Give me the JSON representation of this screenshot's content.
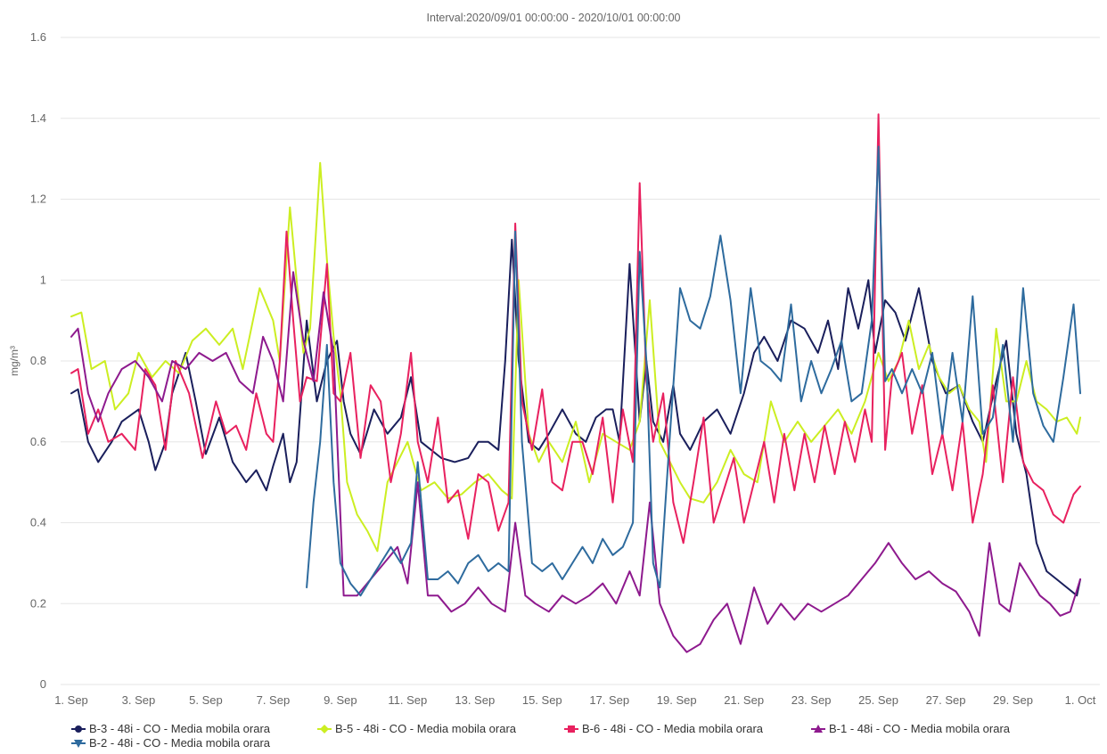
{
  "chart_data": {
    "type": "line",
    "title": "Interval:2020/09/01 00:00:00 - 2020/10/01 00:00:00",
    "ylabel": "mg/m³",
    "xlabel": "",
    "ylim": [
      0,
      1.6
    ],
    "yticks": [
      "0",
      "0.2",
      "0.4",
      "0.6",
      "0.8",
      "1",
      "1.2",
      "1.4",
      "1.6"
    ],
    "xlim": [
      1,
      31
    ],
    "xtick_labels": [
      "1. Sep",
      "3. Sep",
      "5. Sep",
      "7. Sep",
      "9. Sep",
      "11. Sep",
      "13. Sep",
      "15. Sep",
      "17. Sep",
      "19. Sep",
      "21. Sep",
      "23. Sep",
      "25. Sep",
      "27. Sep",
      "29. Sep",
      "1. Oct"
    ],
    "x_unit": "day of September 2020 (31 = 1. Oct)",
    "grid": "horizontal",
    "legend_position": "bottom-left",
    "series": [
      {
        "name": "B-3 - 48i - CO - Media mobila orara",
        "color": "#1a1f5c",
        "marker": "circle",
        "x": [
          1.0,
          1.2,
          1.5,
          1.8,
          2.2,
          2.5,
          3.0,
          3.3,
          3.5,
          3.8,
          4.0,
          4.4,
          4.7,
          5.0,
          5.4,
          5.8,
          6.2,
          6.5,
          6.8,
          7.0,
          7.3,
          7.5,
          7.7,
          8.0,
          8.3,
          8.6,
          8.9,
          9.1,
          9.3,
          9.6,
          10.0,
          10.4,
          10.8,
          11.1,
          11.4,
          11.7,
          12.0,
          12.4,
          12.8,
          13.1,
          13.4,
          13.7,
          13.9,
          14.1,
          14.3,
          14.6,
          14.9,
          15.2,
          15.6,
          16.0,
          16.3,
          16.6,
          16.9,
          17.1,
          17.3,
          17.6,
          17.9,
          18.1,
          18.3,
          18.6,
          18.9,
          19.1,
          19.4,
          19.8,
          20.2,
          20.6,
          21.0,
          21.3,
          21.6,
          22.0,
          22.4,
          22.8,
          23.2,
          23.5,
          23.8,
          24.1,
          24.4,
          24.7,
          24.9,
          25.2,
          25.5,
          25.8,
          26.2,
          26.6,
          27.0,
          27.4,
          27.8,
          28.1,
          28.5,
          28.8,
          29.1,
          29.4,
          29.7,
          30.0,
          30.3,
          30.6,
          30.9,
          31.0
        ],
        "y": [
          0.72,
          0.73,
          0.6,
          0.55,
          0.6,
          0.65,
          0.68,
          0.6,
          0.53,
          0.6,
          0.72,
          0.82,
          0.7,
          0.57,
          0.66,
          0.55,
          0.5,
          0.53,
          0.48,
          0.54,
          0.62,
          0.5,
          0.55,
          0.9,
          0.7,
          0.8,
          0.85,
          0.7,
          0.62,
          0.57,
          0.68,
          0.62,
          0.66,
          0.76,
          0.6,
          0.58,
          0.56,
          0.55,
          0.56,
          0.6,
          0.6,
          0.58,
          0.8,
          1.1,
          0.8,
          0.6,
          0.58,
          0.62,
          0.68,
          0.62,
          0.6,
          0.66,
          0.68,
          0.68,
          0.6,
          1.04,
          0.65,
          0.8,
          0.65,
          0.6,
          0.74,
          0.62,
          0.58,
          0.65,
          0.68,
          0.62,
          0.72,
          0.82,
          0.86,
          0.8,
          0.9,
          0.88,
          0.82,
          0.9,
          0.78,
          0.98,
          0.88,
          1.0,
          0.82,
          0.95,
          0.92,
          0.85,
          0.98,
          0.8,
          0.72,
          0.74,
          0.65,
          0.6,
          0.75,
          0.85,
          0.62,
          0.52,
          0.35,
          0.28,
          0.26,
          0.24,
          0.22,
          0.26
        ]
      },
      {
        "name": "B-5 - 48i - CO - Media mobila orara",
        "color": "#ccee22",
        "marker": "diamond",
        "x": [
          1.0,
          1.3,
          1.6,
          2.0,
          2.3,
          2.7,
          3.0,
          3.4,
          3.8,
          4.2,
          4.6,
          5.0,
          5.4,
          5.8,
          6.1,
          6.3,
          6.6,
          7.0,
          7.2,
          7.5,
          7.7,
          7.9,
          8.1,
          8.4,
          8.6,
          8.8,
          9.0,
          9.2,
          9.5,
          9.8,
          10.1,
          10.4,
          10.7,
          11.0,
          11.4,
          11.8,
          12.2,
          12.6,
          13.0,
          13.4,
          13.8,
          14.1,
          14.3,
          14.6,
          14.9,
          15.2,
          15.6,
          16.0,
          16.4,
          16.8,
          17.2,
          17.6,
          17.9,
          18.2,
          18.5,
          18.8,
          19.1,
          19.4,
          19.8,
          20.2,
          20.6,
          21.0,
          21.4,
          21.8,
          22.2,
          22.6,
          23.0,
          23.4,
          23.8,
          24.2,
          24.6,
          25.0,
          25.3,
          25.6,
          25.9,
          26.2,
          26.5,
          26.8,
          27.1,
          27.4,
          27.7,
          28.0,
          28.2,
          28.5,
          28.8,
          29.1,
          29.4,
          29.7,
          30.0,
          30.3,
          30.6,
          30.9,
          31.0
        ],
        "y": [
          0.91,
          0.92,
          0.78,
          0.8,
          0.68,
          0.72,
          0.82,
          0.76,
          0.8,
          0.77,
          0.85,
          0.88,
          0.84,
          0.88,
          0.78,
          0.86,
          0.98,
          0.9,
          0.8,
          1.18,
          1.0,
          0.82,
          0.88,
          1.29,
          1.05,
          0.86,
          0.72,
          0.5,
          0.42,
          0.38,
          0.33,
          0.5,
          0.55,
          0.6,
          0.48,
          0.5,
          0.46,
          0.47,
          0.5,
          0.52,
          0.48,
          0.46,
          1.0,
          0.62,
          0.55,
          0.6,
          0.55,
          0.65,
          0.5,
          0.62,
          0.6,
          0.58,
          0.65,
          0.95,
          0.6,
          0.55,
          0.5,
          0.46,
          0.45,
          0.5,
          0.58,
          0.52,
          0.5,
          0.7,
          0.6,
          0.65,
          0.6,
          0.64,
          0.68,
          0.62,
          0.7,
          0.82,
          0.75,
          0.8,
          0.9,
          0.78,
          0.84,
          0.76,
          0.72,
          0.74,
          0.68,
          0.65,
          0.55,
          0.88,
          0.7,
          0.7,
          0.8,
          0.7,
          0.68,
          0.65,
          0.66,
          0.62,
          0.66
        ]
      },
      {
        "name": "B-6 - 48i - CO - Media mobila orara",
        "color": "#e8215f",
        "marker": "square",
        "x": [
          1.0,
          1.2,
          1.5,
          1.8,
          2.1,
          2.5,
          2.9,
          3.2,
          3.5,
          3.8,
          4.1,
          4.5,
          4.9,
          5.3,
          5.6,
          5.9,
          6.2,
          6.5,
          6.8,
          7.0,
          7.2,
          7.4,
          7.6,
          7.8,
          8.0,
          8.3,
          8.6,
          8.8,
          9.0,
          9.3,
          9.6,
          9.9,
          10.2,
          10.5,
          10.8,
          11.1,
          11.3,
          11.6,
          11.9,
          12.2,
          12.5,
          12.8,
          13.1,
          13.4,
          13.7,
          14.0,
          14.2,
          14.4,
          14.7,
          15.0,
          15.3,
          15.6,
          15.9,
          16.2,
          16.5,
          16.8,
          17.1,
          17.4,
          17.7,
          17.9,
          18.1,
          18.3,
          18.6,
          18.9,
          19.2,
          19.5,
          19.8,
          20.1,
          20.4,
          20.7,
          21.0,
          21.3,
          21.6,
          21.9,
          22.2,
          22.5,
          22.8,
          23.1,
          23.4,
          23.7,
          24.0,
          24.3,
          24.6,
          24.8,
          25.0,
          25.2,
          25.4,
          25.7,
          26.0,
          26.3,
          26.6,
          26.9,
          27.2,
          27.5,
          27.8,
          28.1,
          28.4,
          28.7,
          29.0,
          29.3,
          29.6,
          29.9,
          30.2,
          30.5,
          30.8,
          31.0
        ],
        "y": [
          0.77,
          0.78,
          0.62,
          0.68,
          0.6,
          0.62,
          0.58,
          0.78,
          0.74,
          0.58,
          0.8,
          0.72,
          0.56,
          0.7,
          0.62,
          0.64,
          0.58,
          0.72,
          0.62,
          0.6,
          0.8,
          1.12,
          0.9,
          0.7,
          0.76,
          0.75,
          1.04,
          0.72,
          0.7,
          0.82,
          0.56,
          0.74,
          0.7,
          0.5,
          0.62,
          0.82,
          0.6,
          0.5,
          0.66,
          0.45,
          0.48,
          0.36,
          0.52,
          0.5,
          0.38,
          0.45,
          1.14,
          0.7,
          0.58,
          0.73,
          0.5,
          0.48,
          0.6,
          0.6,
          0.52,
          0.66,
          0.45,
          0.68,
          0.55,
          1.24,
          0.75,
          0.6,
          0.72,
          0.45,
          0.35,
          0.5,
          0.66,
          0.4,
          0.48,
          0.56,
          0.4,
          0.5,
          0.6,
          0.45,
          0.62,
          0.48,
          0.62,
          0.5,
          0.64,
          0.52,
          0.65,
          0.55,
          0.68,
          0.6,
          1.41,
          0.58,
          0.76,
          0.82,
          0.62,
          0.74,
          0.52,
          0.62,
          0.48,
          0.65,
          0.4,
          0.52,
          0.74,
          0.5,
          0.76,
          0.55,
          0.5,
          0.48,
          0.42,
          0.4,
          0.47,
          0.49
        ]
      },
      {
        "name": "B-1 - 48i - CO - Media mobila orara",
        "color": "#8e1a8e",
        "marker": "triangle",
        "x": [
          1.0,
          1.2,
          1.5,
          1.8,
          2.1,
          2.5,
          2.9,
          3.3,
          3.7,
          4.0,
          4.4,
          4.8,
          5.2,
          5.6,
          6.0,
          6.4,
          6.7,
          7.0,
          7.3,
          7.6,
          7.9,
          8.2,
          8.5,
          8.8,
          9.1,
          9.5,
          9.9,
          10.3,
          10.7,
          11.0,
          11.3,
          11.6,
          11.9,
          12.3,
          12.7,
          13.1,
          13.5,
          13.9,
          14.2,
          14.5,
          14.8,
          15.2,
          15.6,
          16.0,
          16.4,
          16.8,
          17.2,
          17.6,
          17.9,
          18.2,
          18.5,
          18.9,
          19.3,
          19.7,
          20.1,
          20.5,
          20.9,
          21.3,
          21.7,
          22.1,
          22.5,
          22.9,
          23.3,
          23.7,
          24.1,
          24.5,
          24.9,
          25.3,
          25.7,
          26.1,
          26.5,
          26.9,
          27.3,
          27.7,
          28.0,
          28.3,
          28.6,
          28.9,
          29.2,
          29.5,
          29.8,
          30.1,
          30.4,
          30.7,
          31.0
        ],
        "y": [
          0.86,
          0.88,
          0.72,
          0.65,
          0.72,
          0.78,
          0.8,
          0.76,
          0.7,
          0.8,
          0.78,
          0.82,
          0.8,
          0.82,
          0.75,
          0.72,
          0.86,
          0.8,
          0.7,
          1.02,
          0.85,
          0.75,
          0.97,
          0.82,
          0.22,
          0.22,
          0.26,
          0.3,
          0.34,
          0.25,
          0.5,
          0.22,
          0.22,
          0.18,
          0.2,
          0.24,
          0.2,
          0.18,
          0.4,
          0.22,
          0.2,
          0.18,
          0.22,
          0.2,
          0.22,
          0.25,
          0.2,
          0.28,
          0.22,
          0.45,
          0.2,
          0.12,
          0.08,
          0.1,
          0.16,
          0.2,
          0.1,
          0.24,
          0.15,
          0.2,
          0.16,
          0.2,
          0.18,
          0.2,
          0.22,
          0.26,
          0.3,
          0.35,
          0.3,
          0.26,
          0.28,
          0.25,
          0.23,
          0.18,
          0.12,
          0.35,
          0.2,
          0.18,
          0.3,
          0.26,
          0.22,
          0.2,
          0.17,
          0.18,
          0.26
        ]
      },
      {
        "name": "B-2 - 48i - CO - Media mobila orara",
        "color": "#2e6b9e",
        "marker": "triangle-down",
        "x": [
          8.0,
          8.2,
          8.4,
          8.6,
          8.8,
          9.0,
          9.3,
          9.6,
          9.9,
          10.2,
          10.5,
          10.8,
          11.1,
          11.3,
          11.6,
          11.9,
          12.2,
          12.5,
          12.8,
          13.1,
          13.4,
          13.7,
          14.0,
          14.2,
          14.4,
          14.7,
          15.0,
          15.3,
          15.6,
          15.9,
          16.2,
          16.5,
          16.8,
          17.1,
          17.4,
          17.7,
          17.9,
          18.1,
          18.3,
          18.5,
          18.8,
          19.1,
          19.4,
          19.7,
          20.0,
          20.3,
          20.6,
          20.9,
          21.2,
          21.5,
          21.8,
          22.1,
          22.4,
          22.7,
          23.0,
          23.3,
          23.6,
          23.9,
          24.2,
          24.5,
          24.8,
          25.0,
          25.2,
          25.4,
          25.7,
          26.0,
          26.3,
          26.6,
          26.9,
          27.2,
          27.5,
          27.8,
          28.1,
          28.4,
          28.7,
          29.0,
          29.3,
          29.6,
          29.9,
          30.2,
          30.5,
          30.8,
          31.0
        ],
        "y": [
          0.24,
          0.45,
          0.6,
          0.84,
          0.5,
          0.3,
          0.25,
          0.22,
          0.26,
          0.3,
          0.34,
          0.3,
          0.35,
          0.55,
          0.26,
          0.26,
          0.28,
          0.25,
          0.3,
          0.32,
          0.28,
          0.3,
          0.28,
          1.12,
          0.6,
          0.3,
          0.28,
          0.3,
          0.26,
          0.3,
          0.34,
          0.3,
          0.36,
          0.32,
          0.34,
          0.4,
          1.07,
          0.8,
          0.3,
          0.24,
          0.62,
          0.98,
          0.9,
          0.88,
          0.96,
          1.11,
          0.95,
          0.72,
          0.98,
          0.8,
          0.78,
          0.75,
          0.94,
          0.7,
          0.8,
          0.72,
          0.78,
          0.85,
          0.7,
          0.72,
          0.9,
          1.33,
          0.75,
          0.78,
          0.72,
          0.78,
          0.72,
          0.82,
          0.62,
          0.82,
          0.65,
          0.96,
          0.62,
          0.66,
          0.84,
          0.6,
          0.98,
          0.72,
          0.64,
          0.6,
          0.76,
          0.94,
          0.72
        ]
      }
    ]
  }
}
